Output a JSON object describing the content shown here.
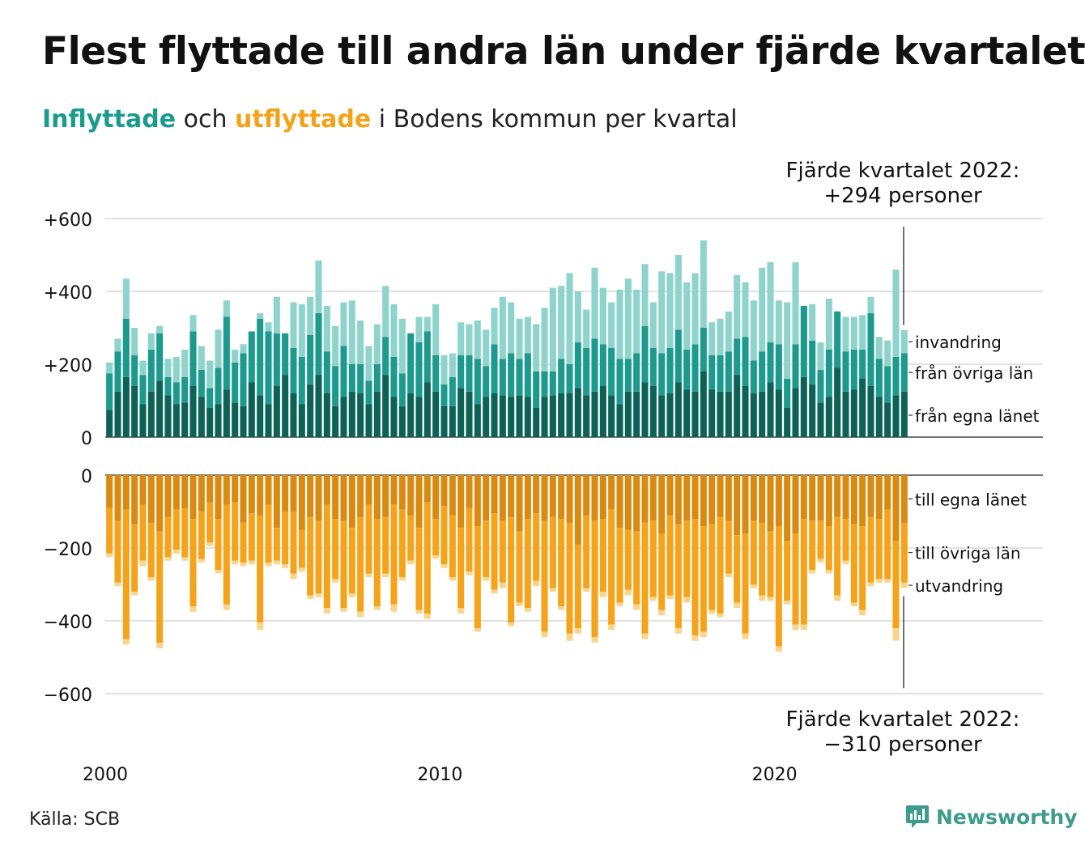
{
  "title": "Flest flyttade till andra län under fjärde kvartalet",
  "subtitle": {
    "part1": "Inflyttade",
    "part2": " och ",
    "part3": "utflyttade",
    "part4": " i Bodens kommun per kvartal"
  },
  "annotation_top": {
    "line1": "Fjärde kvartalet 2022:",
    "line2": "+294 personer"
  },
  "annotation_bottom": {
    "line1": "Fjärde kvartalet 2022:",
    "line2": "−310 personer"
  },
  "source": "Källa: SCB",
  "brand": "Newsworthy",
  "colors": {
    "in_own": "#0d6257",
    "in_other": "#1c9a8d",
    "in_immig": "#8ed4cc",
    "out_own": "#d98a10",
    "out_other": "#f5a31a",
    "out_emig": "#fbd58c",
    "grid": "#e2e2e2",
    "brand": "#3f9b8b"
  },
  "chart_data": [
    {
      "type": "bar",
      "stacked": true,
      "title": "Inflyttade",
      "x_start": "2000 Q1",
      "x_end": "2022 Q4",
      "x_ticks": [
        "2000",
        "2010",
        "2020"
      ],
      "y_ticks": [
        "+600",
        "+400",
        "+200",
        "0"
      ],
      "ylim": [
        0,
        600
      ],
      "series": [
        {
          "name": "från egna länet",
          "values": [
            75,
            125,
            165,
            140,
            90,
            125,
            155,
            115,
            90,
            95,
            140,
            110,
            80,
            90,
            130,
            95,
            85,
            150,
            115,
            90,
            140,
            170,
            120,
            90,
            145,
            170,
            120,
            85,
            110,
            125,
            120,
            90,
            125,
            170,
            110,
            85,
            120,
            110,
            150,
            125,
            85,
            85,
            135,
            125,
            90,
            110,
            120,
            115,
            110,
            115,
            110,
            80,
            110,
            115,
            120,
            120,
            135,
            115,
            125,
            140,
            115,
            90,
            125,
            125,
            150,
            140,
            115,
            120,
            150,
            130,
            125,
            180,
            130,
            125,
            125,
            170,
            140,
            120,
            125,
            150,
            130,
            80,
            135,
            165,
            145,
            95,
            110,
            190,
            125,
            130,
            160,
            140,
            110,
            95,
            115,
            125
          ]
        },
        {
          "name": "från övriga län",
          "values": [
            100,
            110,
            160,
            85,
            80,
            115,
            130,
            50,
            60,
            70,
            150,
            75,
            55,
            100,
            200,
            110,
            145,
            140,
            210,
            200,
            145,
            115,
            125,
            130,
            135,
            170,
            115,
            110,
            140,
            75,
            80,
            65,
            75,
            105,
            110,
            90,
            165,
            150,
            140,
            100,
            60,
            80,
            90,
            100,
            125,
            85,
            135,
            100,
            120,
            100,
            120,
            100,
            70,
            65,
            95,
            80,
            125,
            130,
            145,
            115,
            130,
            125,
            90,
            105,
            155,
            105,
            115,
            125,
            145,
            110,
            130,
            120,
            95,
            100,
            110,
            100,
            135,
            90,
            110,
            110,
            125,
            80,
            120,
            195,
            120,
            90,
            130,
            155,
            110,
            110,
            80,
            200,
            105,
            100,
            105,
            105
          ]
        },
        {
          "name": "invandring",
          "values": [
            30,
            35,
            110,
            75,
            40,
            45,
            20,
            50,
            70,
            75,
            45,
            65,
            75,
            105,
            45,
            35,
            25,
            0,
            15,
            25,
            100,
            0,
            125,
            145,
            105,
            145,
            125,
            110,
            120,
            175,
            120,
            95,
            110,
            140,
            145,
            150,
            0,
            70,
            40,
            140,
            80,
            65,
            90,
            85,
            105,
            100,
            100,
            170,
            140,
            110,
            100,
            130,
            175,
            230,
            200,
            250,
            140,
            105,
            195,
            155,
            125,
            190,
            220,
            175,
            170,
            125,
            225,
            205,
            205,
            185,
            195,
            240,
            90,
            100,
            110,
            175,
            150,
            165,
            230,
            220,
            120,
            210,
            225,
            0,
            100,
            75,
            140,
            0,
            95,
            90,
            95,
            45,
            60,
            70,
            240,
            64
          ]
        }
      ]
    },
    {
      "type": "bar",
      "stacked": true,
      "title": "Utflyttade",
      "x_start": "2000 Q1",
      "x_end": "2022 Q4",
      "x_ticks": [
        "2000",
        "2010",
        "2020"
      ],
      "y_ticks": [
        "0",
        "−200",
        "−400",
        "−600"
      ],
      "ylim": [
        -600,
        0
      ],
      "series": [
        {
          "name": "till egna länet",
          "values": [
            -90,
            -125,
            -95,
            -135,
            -80,
            -130,
            -155,
            -115,
            -95,
            -90,
            -120,
            -100,
            -75,
            -120,
            -80,
            -75,
            -130,
            -105,
            -110,
            -80,
            -145,
            -100,
            -100,
            -150,
            -115,
            -125,
            -80,
            -120,
            -125,
            -145,
            -115,
            -80,
            -120,
            -115,
            -80,
            -95,
            -110,
            -145,
            -75,
            -120,
            -85,
            -110,
            -145,
            -90,
            -140,
            -125,
            -105,
            -125,
            -115,
            -155,
            -120,
            -105,
            -125,
            -115,
            -120,
            -130,
            -190,
            -110,
            -125,
            -120,
            -95,
            -145,
            -150,
            -155,
            -130,
            -125,
            -160,
            -110,
            -135,
            -125,
            -120,
            -140,
            -135,
            -115,
            -125,
            -165,
            -160,
            -125,
            -130,
            -155,
            -140,
            -180,
            -160,
            -120,
            -125,
            -125,
            -140,
            -115,
            -120,
            -135,
            -140,
            -115,
            -120,
            -95,
            -180,
            -130
          ]
        },
        {
          "name": "till övriga län",
          "values": [
            -125,
            -170,
            -355,
            -185,
            -155,
            -150,
            -305,
            -110,
            -110,
            -135,
            -240,
            -130,
            -110,
            -140,
            -275,
            -160,
            -110,
            -130,
            -295,
            -160,
            -90,
            -145,
            -170,
            -105,
            -215,
            -200,
            -285,
            -165,
            -240,
            -180,
            -260,
            -190,
            -240,
            -155,
            -275,
            -185,
            -125,
            -225,
            -305,
            -100,
            -160,
            -170,
            -220,
            -175,
            -280,
            -155,
            -210,
            -170,
            -290,
            -195,
            -245,
            -185,
            -305,
            -195,
            -240,
            -305,
            -230,
            -200,
            -320,
            -200,
            -315,
            -205,
            -165,
            -200,
            -305,
            -210,
            -210,
            -220,
            -285,
            -210,
            -320,
            -290,
            -235,
            -265,
            -145,
            -185,
            -275,
            -175,
            -200,
            -180,
            -330,
            -165,
            -250,
            -290,
            -135,
            -105,
            -120,
            -215,
            -115,
            -215,
            -230,
            -180,
            -165,
            -190,
            -240,
            -165
          ]
        },
        {
          "name": "utvandring",
          "values": [
            -10,
            -10,
            -15,
            -10,
            -15,
            -10,
            -15,
            -10,
            -10,
            -10,
            -15,
            -10,
            -10,
            -10,
            -15,
            -10,
            -10,
            -10,
            -20,
            -10,
            -10,
            -10,
            -15,
            -10,
            -10,
            -10,
            -15,
            -10,
            -10,
            -10,
            -15,
            -10,
            -10,
            -10,
            -20,
            -10,
            -10,
            -10,
            -15,
            -10,
            -10,
            -10,
            -15,
            -10,
            -10,
            -10,
            -10,
            -15,
            -10,
            -10,
            -10,
            -15,
            -15,
            -10,
            -10,
            -20,
            -15,
            -10,
            -15,
            -15,
            -15,
            -10,
            -15,
            -15,
            -15,
            -10,
            -15,
            -10,
            -15,
            -15,
            -15,
            -15,
            -10,
            -10,
            -10,
            -15,
            -15,
            -10,
            -15,
            -10,
            -15,
            -10,
            -15,
            -15,
            -10,
            -10,
            -10,
            -15,
            -10,
            -10,
            -15,
            -10,
            -10,
            -10,
            -35,
            -15
          ]
        }
      ]
    }
  ]
}
